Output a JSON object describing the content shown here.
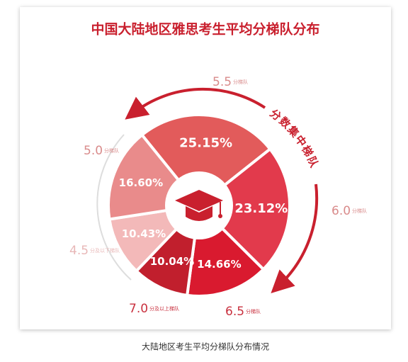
{
  "chart_data": {
    "type": "pie",
    "title": "中国大陆地区雅思考生平均分梯队分布",
    "annotation": "分数集中梯队",
    "caption": "大陆地区考生平均分梯队分布情况",
    "categories": [
      "5.5",
      "6.0",
      "6.5",
      "7.0",
      "4.5",
      "5.0"
    ],
    "category_notes": [
      "分梯队",
      "分梯队",
      "分梯队",
      "分及以上梯队",
      "分及以下梯队",
      "分梯队"
    ],
    "values": [
      25.15,
      23.12,
      14.66,
      10.04,
      10.43,
      16.6
    ],
    "value_labels": [
      "25.15%",
      "23.12%",
      "14.66%",
      "10.04%",
      "10.43%",
      "16.60%"
    ],
    "colors": [
      "#e25b5b",
      "#e23a4c",
      "#d91a2f",
      "#c11f2d",
      "#f3b9b9",
      "#e98b8b"
    ],
    "category_colors": [
      "#d98b8b",
      "#d98b8b",
      "#c9313f",
      "#c9313f",
      "#e8b7b7",
      "#d98b8b"
    ]
  }
}
